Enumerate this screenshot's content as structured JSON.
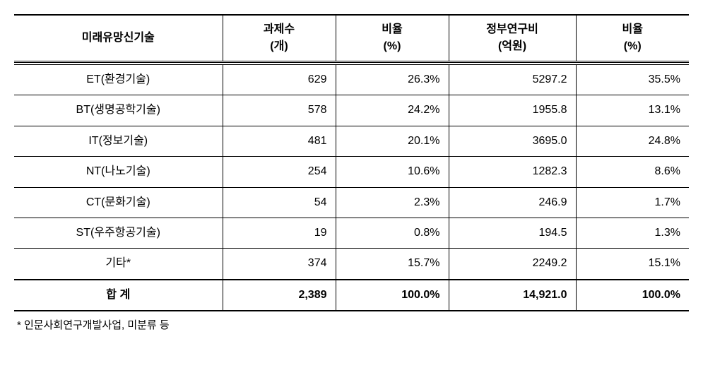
{
  "table": {
    "columns": [
      {
        "line1": "미래유망신기술",
        "line2": ""
      },
      {
        "line1": "과제수",
        "line2": "(개)"
      },
      {
        "line1": "비율",
        "line2": "(%)"
      },
      {
        "line1": "정부연구비",
        "line2": "(억원)"
      },
      {
        "line1": "비율",
        "line2": "(%)"
      }
    ],
    "column_widths": [
      "col-name",
      "col-count",
      "col-ratio1",
      "col-budget",
      "col-ratio2"
    ],
    "rows": [
      {
        "name": "ET(환경기술)",
        "count": "629",
        "ratio1": "26.3%",
        "budget": "5297.2",
        "ratio2": "35.5%"
      },
      {
        "name": "BT(생명공학기술)",
        "count": "578",
        "ratio1": "24.2%",
        "budget": "1955.8",
        "ratio2": "13.1%"
      },
      {
        "name": "IT(정보기술)",
        "count": "481",
        "ratio1": "20.1%",
        "budget": "3695.0",
        "ratio2": "24.8%"
      },
      {
        "name": "NT(나노기술)",
        "count": "254",
        "ratio1": "10.6%",
        "budget": "1282.3",
        "ratio2": "8.6%"
      },
      {
        "name": "CT(문화기술)",
        "count": "54",
        "ratio1": "2.3%",
        "budget": "246.9",
        "ratio2": "1.7%"
      },
      {
        "name": "ST(우주항공기술)",
        "count": "19",
        "ratio1": "0.8%",
        "budget": "194.5",
        "ratio2": "1.3%"
      },
      {
        "name": "기타*",
        "count": "374",
        "ratio1": "15.7%",
        "budget": "2249.2",
        "ratio2": "15.1%"
      }
    ],
    "total": {
      "name": "합 계",
      "count": "2,389",
      "ratio1": "100.0%",
      "budget": "14,921.0",
      "ratio2": "100.0%"
    },
    "header_border_top": "2px solid #000000",
    "header_border_bottom": "3px double #000000",
    "row_border": "1px solid #000000",
    "total_border": "2px solid #000000",
    "font_size": 16,
    "header_fontweight": "bold",
    "total_fontweight": "bold",
    "text_color": "#000000",
    "background_color": "#ffffff"
  },
  "footnote": "* 인문사회연구개발사업, 미분류 등"
}
